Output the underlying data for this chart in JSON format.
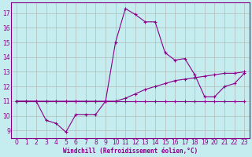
{
  "xlabel": "Windchill (Refroidissement éolien,°C)",
  "background_color": "#c5ecee",
  "grid_color": "#b0b0b0",
  "line_color": "#880088",
  "xlim": [
    -0.5,
    23.5
  ],
  "ylim": [
    8.5,
    17.7
  ],
  "xticks": [
    0,
    1,
    2,
    3,
    4,
    5,
    6,
    7,
    8,
    9,
    10,
    11,
    12,
    13,
    14,
    15,
    16,
    17,
    18,
    19,
    20,
    21,
    22,
    23
  ],
  "yticks": [
    9,
    10,
    11,
    12,
    13,
    14,
    15,
    16,
    17
  ],
  "line1_x": [
    0,
    1,
    2,
    3,
    4,
    5,
    6,
    7,
    8,
    9,
    10,
    11,
    12,
    13,
    14,
    15,
    16,
    17,
    18,
    19,
    20,
    21,
    22,
    23
  ],
  "line1_y": [
    11,
    11,
    11,
    11,
    11,
    11,
    11,
    11,
    11,
    11,
    11,
    11,
    11,
    11,
    11,
    11,
    11,
    11,
    11,
    11,
    11,
    11,
    11,
    11
  ],
  "line2_x": [
    0,
    1,
    2,
    3,
    4,
    5,
    6,
    7,
    8,
    9,
    10,
    11,
    12,
    13,
    14,
    15,
    16,
    17,
    18,
    19,
    20,
    21,
    22,
    23
  ],
  "line2_y": [
    11,
    11,
    11,
    9.7,
    9.5,
    8.9,
    10.1,
    10.1,
    10.1,
    11.0,
    15.0,
    17.3,
    16.9,
    16.4,
    16.4,
    14.3,
    13.8,
    13.9,
    12.8,
    11.3,
    11.3,
    12.0,
    12.2,
    12.9
  ],
  "line3_x": [
    0,
    1,
    2,
    3,
    4,
    5,
    6,
    7,
    8,
    9,
    10,
    11,
    12,
    13,
    14,
    15,
    16,
    17,
    18,
    19,
    20,
    21,
    22,
    23
  ],
  "line3_y": [
    11,
    11,
    11,
    11,
    11,
    11,
    11,
    11,
    11,
    11,
    11,
    11.2,
    11.5,
    11.8,
    12.0,
    12.2,
    12.4,
    12.5,
    12.6,
    12.7,
    12.8,
    12.9,
    12.9,
    13.0
  ]
}
